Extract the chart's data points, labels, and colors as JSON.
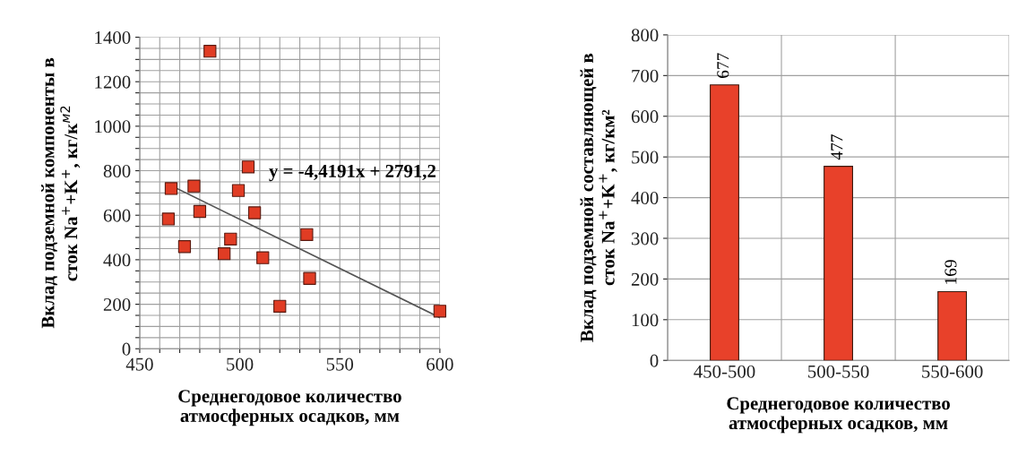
{
  "chart_data": [
    {
      "type": "scatter",
      "xlabel": "Среднегодовое количество\nатмосферных осадков, мм",
      "ylabel": "Вклад подземной компоненты в\nсток Na$^{+}$+K$^{+}$, кг/к$^{м2}$",
      "xlim": [
        450,
        600
      ],
      "ylim": [
        0,
        1400
      ],
      "xticks": [
        450,
        {
          "value": 460,
          "label": null
        },
        {
          "value": 470,
          "label": null
        },
        {
          "value": 480,
          "label": null
        },
        {
          "value": 490,
          "label": null
        },
        500,
        {
          "value": 510,
          "label": null
        },
        {
          "value": 520,
          "label": null
        },
        {
          "value": 530,
          "label": null
        },
        {
          "value": 540,
          "label": null
        },
        550,
        {
          "value": 560,
          "label": null
        },
        {
          "value": 570,
          "label": null
        },
        {
          "value": 580,
          "label": null
        },
        {
          "value": 590,
          "label": null
        },
        600
      ],
      "yticks": [
        0,
        {
          "value": 50,
          "label": null
        },
        {
          "value": 100,
          "label": null
        },
        {
          "value": 150,
          "label": null
        },
        200,
        {
          "value": 250,
          "label": null
        },
        {
          "value": 300,
          "label": null
        },
        {
          "value": 350,
          "label": null
        },
        400,
        {
          "value": 450,
          "label": null
        },
        {
          "value": 500,
          "label": null
        },
        {
          "value": 550,
          "label": null
        },
        600,
        {
          "value": 650,
          "label": null
        },
        {
          "value": 700,
          "label": null
        },
        {
          "value": 750,
          "label": null
        },
        800,
        {
          "value": 850,
          "label": null
        },
        {
          "value": 900,
          "label": null
        },
        {
          "value": 950,
          "label": null
        },
        1000,
        {
          "value": 1050,
          "label": null
        },
        {
          "value": 1100,
          "label": null
        },
        {
          "value": 1150,
          "label": null
        },
        1200,
        {
          "value": 1250,
          "label": null
        },
        {
          "value": 1300,
          "label": null
        },
        {
          "value": 1350,
          "label": null
        },
        1400
      ],
      "grid": true,
      "series": [
        {
          "color": "#e03c24",
          "marker": "square",
          "x": [
            485.1,
            465.7,
            477.1,
            464.3,
            480,
            472.4,
            495.4,
            492.2,
            499.3,
            504.2,
            507.4,
            511.5,
            520,
            533.5,
            534.9,
            600
          ],
          "values": [
            1337,
            720,
            731,
            583,
            617,
            459,
            493,
            427,
            711,
            817,
            611,
            409,
            191,
            513,
            316,
            169
          ]
        },
        {
          "type": "line",
          "marker": "none",
          "color": "#555555",
          "x": [
            465,
            600
          ],
          "values": [
            736,
            140
          ]
        }
      ],
      "annotations": [
        "y = -4,4191x + 2791,2"
      ]
    },
    {
      "type": "bar",
      "xlabel": "Среднегодовое количество\nатмосферных осадков, мм",
      "ylabel": "Вклад подземной составляющей в\nсток Na$^{+}$+K$^{+}$, кг/км²",
      "categories": [
        "450-500",
        "500-550",
        "550-600"
      ],
      "values": [
        677,
        477,
        169
      ],
      "color": "#e8412a",
      "ylim": [
        0,
        800
      ],
      "yticks": [
        0,
        100,
        200,
        300,
        400,
        500,
        600,
        700,
        800
      ],
      "grid": true,
      "data_labels": true
    }
  ]
}
